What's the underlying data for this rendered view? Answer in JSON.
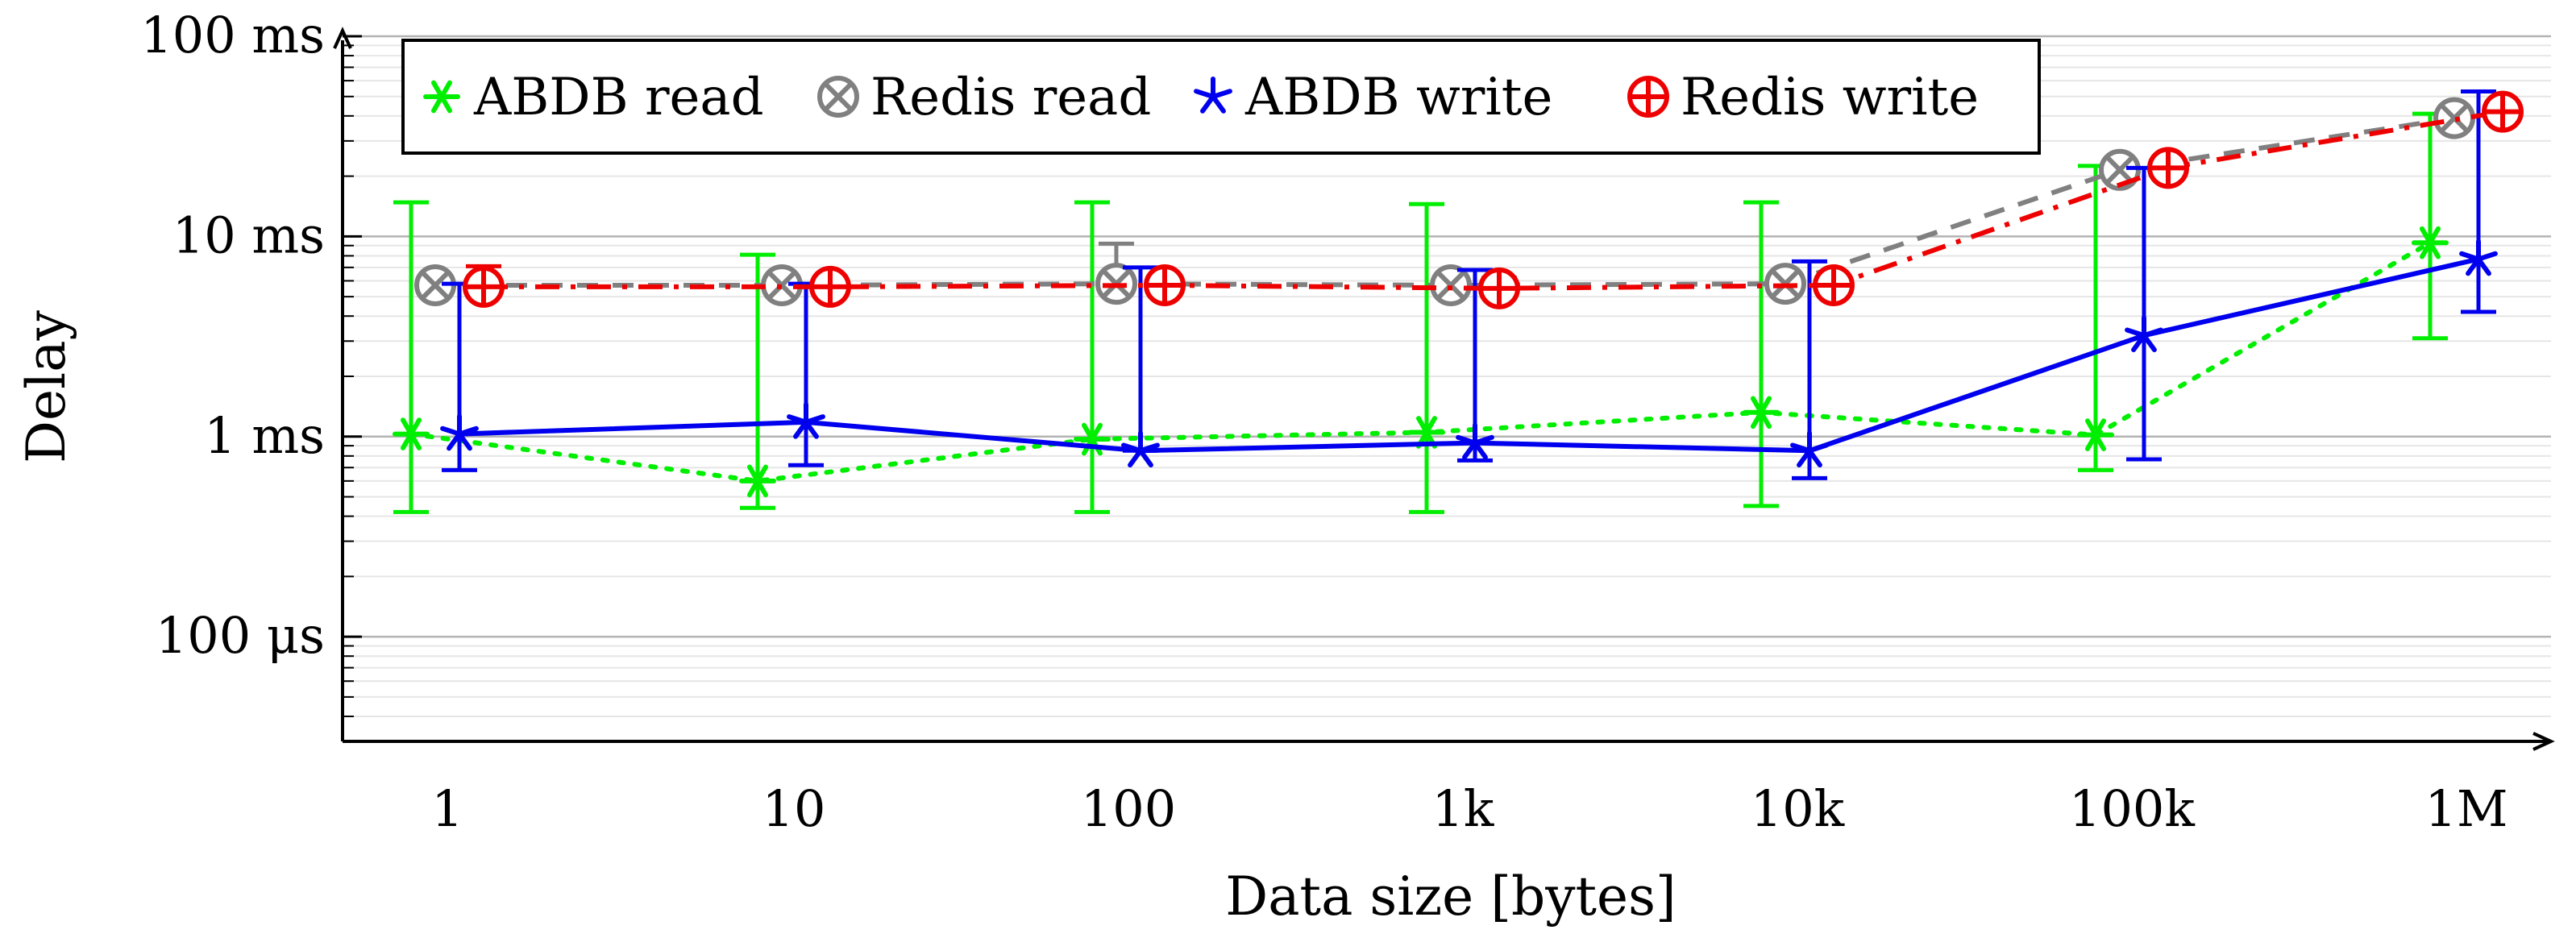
{
  "chart_data": {
    "type": "line",
    "xlabel": "Data size [bytes]",
    "ylabel": "Delay",
    "x_scale": "log",
    "y_scale": "log",
    "x_unit": "bytes",
    "y_unit": "seconds",
    "categories": [
      "1",
      "10",
      "100",
      "1k",
      "10k",
      "100k",
      "1M"
    ],
    "x": [
      1,
      10,
      100,
      1000,
      10000,
      100000,
      1000000
    ],
    "y_ticks": [
      {
        "value": 0.0001,
        "label": "100 μs"
      },
      {
        "value": 0.001,
        "label": "1 ms"
      },
      {
        "value": 0.01,
        "label": "10 ms"
      },
      {
        "value": 0.1,
        "label": "100 ms"
      }
    ],
    "ylim": [
      3e-05,
      0.1
    ],
    "grid": "horizontal",
    "legend_placement": "top-left",
    "series": [
      {
        "name": "ABDB read",
        "color": "#00ee00",
        "line_style": "dotted",
        "marker": "asterisk",
        "values": [
          0.00103,
          0.0006,
          0.00097,
          0.00105,
          0.00132,
          0.00102,
          0.0093
        ],
        "err_low": [
          0.00042,
          0.00044,
          0.00042,
          0.00042,
          0.00045,
          0.00068,
          0.0031
        ],
        "err_high": [
          0.0148,
          0.0081,
          0.0148,
          0.0145,
          0.0148,
          0.0225,
          0.041
        ]
      },
      {
        "name": "Redis read",
        "color": "#808080",
        "line_style": "dashed",
        "marker": "circle-x",
        "values": [
          0.0057,
          0.0057,
          0.0058,
          0.0057,
          0.0058,
          0.0215,
          0.039
        ],
        "err_low": [
          0.0055,
          0.0055,
          0.0055,
          0.0055,
          0.0055,
          0.0205,
          0.036
        ],
        "err_high": [
          0.0063,
          0.0063,
          0.0092,
          0.0063,
          0.0062,
          0.0235,
          0.042
        ]
      },
      {
        "name": "ABDB write",
        "color": "#0000ee",
        "line_style": "solid",
        "marker": "star",
        "values": [
          0.00103,
          0.00118,
          0.00085,
          0.00093,
          0.00085,
          0.0032,
          0.0077
        ],
        "err_low": [
          0.00068,
          0.00072,
          0.00085,
          0.00076,
          0.00062,
          0.00077,
          0.0042
        ],
        "err_high": [
          0.0058,
          0.0058,
          0.007,
          0.0068,
          0.0075,
          0.022,
          0.053
        ]
      },
      {
        "name": "Redis write",
        "color": "#ee0000",
        "line_style": "dashdot",
        "marker": "circle-plus",
        "values": [
          0.0056,
          0.0056,
          0.0057,
          0.0055,
          0.0057,
          0.022,
          0.042
        ],
        "err_low": [
          0.0055,
          0.0055,
          0.0055,
          0.0054,
          0.0055,
          0.021,
          0.04
        ],
        "err_high": [
          0.0071,
          0.0062,
          0.0062,
          0.0062,
          0.0062,
          0.024,
          0.044
        ]
      }
    ]
  }
}
